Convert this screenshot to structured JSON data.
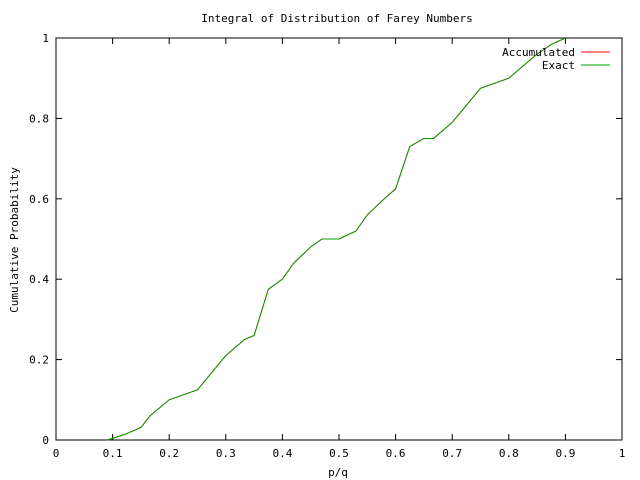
{
  "chart_data": {
    "type": "line",
    "title": "Integral of Distribution of Farey Numbers",
    "xlabel": "p/q",
    "ylabel": "Cumulative Probability",
    "xlim": [
      0,
      1
    ],
    "ylim": [
      0,
      1
    ],
    "xticks": [
      "0",
      "0.1",
      "0.2",
      "0.3",
      "0.4",
      "0.5",
      "0.6",
      "0.7",
      "0.8",
      "0.9",
      "1"
    ],
    "yticks": [
      "0",
      "0.2",
      "0.4",
      "0.6",
      "0.8",
      "1"
    ],
    "grid": false,
    "legend_position": "top-right",
    "series": [
      {
        "name": "Accumulated",
        "color": "#ff0000",
        "x": [
          0.09,
          0.1,
          0.125,
          0.15,
          0.166,
          0.2,
          0.25,
          0.3,
          0.333,
          0.35,
          0.375,
          0.4,
          0.42,
          0.45,
          0.47,
          0.5,
          0.53,
          0.55,
          0.58,
          0.6,
          0.625,
          0.65,
          0.667,
          0.7,
          0.75,
          0.8,
          0.833,
          0.85,
          0.875,
          0.9
        ],
        "y": [
          0,
          0.004,
          0.016,
          0.031,
          0.06,
          0.1,
          0.125,
          0.21,
          0.25,
          0.26,
          0.375,
          0.4,
          0.44,
          0.48,
          0.5,
          0.5,
          0.52,
          0.56,
          0.6,
          0.625,
          0.73,
          0.75,
          0.75,
          0.79,
          0.875,
          0.9,
          0.94,
          0.96,
          0.984,
          1.0
        ]
      },
      {
        "name": "Exact",
        "color": "#00a000",
        "x": [
          0.09,
          0.1,
          0.125,
          0.15,
          0.166,
          0.2,
          0.25,
          0.3,
          0.333,
          0.35,
          0.375,
          0.4,
          0.42,
          0.45,
          0.47,
          0.5,
          0.53,
          0.55,
          0.58,
          0.6,
          0.625,
          0.65,
          0.667,
          0.7,
          0.75,
          0.8,
          0.833,
          0.85,
          0.875,
          0.9
        ],
        "y": [
          0,
          0.004,
          0.016,
          0.031,
          0.06,
          0.1,
          0.125,
          0.21,
          0.25,
          0.26,
          0.375,
          0.4,
          0.44,
          0.48,
          0.5,
          0.5,
          0.52,
          0.56,
          0.6,
          0.625,
          0.73,
          0.75,
          0.75,
          0.79,
          0.875,
          0.9,
          0.94,
          0.96,
          0.984,
          1.0
        ]
      }
    ]
  }
}
